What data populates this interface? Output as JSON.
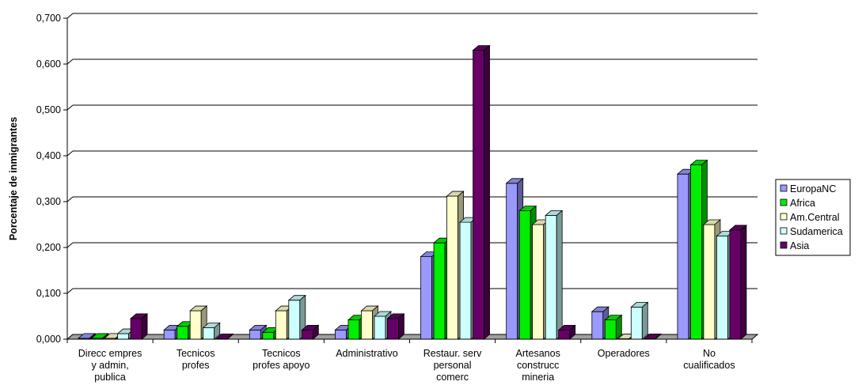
{
  "chart_data": {
    "type": "bar",
    "title": "",
    "xlabel": "",
    "ylabel": "Porcentaje de inmigrantes",
    "ylim": [
      0,
      0.7
    ],
    "yticks": [
      "0,000",
      "0,100",
      "0,200",
      "0,300",
      "0,400",
      "0,500",
      "0,600",
      "0,700"
    ],
    "grid": true,
    "legend_position": "right",
    "categories": [
      [
        "Direcc empres",
        "y admin,",
        "publica"
      ],
      [
        "Tecnicos",
        "profes"
      ],
      [
        "Tecnicos",
        "profes apoyo"
      ],
      [
        "Administrativo"
      ],
      [
        "Restaur. serv",
        "personal",
        "comerc"
      ],
      [
        "Artesanos",
        "construcc",
        "mineria"
      ],
      [
        "Operadores"
      ],
      [
        "No",
        "cualificados"
      ]
    ],
    "series": [
      {
        "name": "EuropaNC",
        "color": "#9999ff",
        "values": [
          0.002,
          0.02,
          0.02,
          0.02,
          0.18,
          0.34,
          0.06,
          0.36
        ]
      },
      {
        "name": "Africa",
        "color": "#00ee00",
        "values": [
          0.002,
          0.028,
          0.015,
          0.042,
          0.21,
          0.28,
          0.042,
          0.38
        ]
      },
      {
        "name": "Am.Central",
        "color": "#ffffcc",
        "values": [
          0.002,
          0.062,
          0.062,
          0.062,
          0.312,
          0.25,
          0.001,
          0.25
        ]
      },
      {
        "name": "Sudamerica",
        "color": "#ccffff",
        "values": [
          0.012,
          0.025,
          0.085,
          0.05,
          0.255,
          0.27,
          0.07,
          0.225
        ]
      },
      {
        "name": "Asia",
        "color": "#660066",
        "values": [
          0.045,
          0.001,
          0.02,
          0.045,
          0.63,
          0.02,
          0.001,
          0.238
        ]
      }
    ]
  }
}
